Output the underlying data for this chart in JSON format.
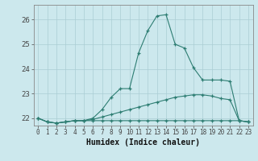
{
  "xlabel": "Humidex (Indice chaleur)",
  "bg_color": "#cce8ed",
  "line_color": "#2d7d72",
  "grid_color": "#aacdd4",
  "xlim": [
    -0.5,
    23.5
  ],
  "ylim": [
    21.7,
    26.6
  ],
  "yticks": [
    22,
    23,
    24,
    25,
    26
  ],
  "xticks": [
    0,
    1,
    2,
    3,
    4,
    5,
    6,
    7,
    8,
    9,
    10,
    11,
    12,
    13,
    14,
    15,
    16,
    17,
    18,
    19,
    20,
    21,
    22,
    23
  ],
  "line1_x": [
    0,
    1,
    2,
    3,
    4,
    5,
    6,
    7,
    8,
    9,
    10,
    11,
    12,
    13,
    14,
    15,
    16,
    17,
    18,
    19,
    20,
    21,
    22,
    23
  ],
  "line1_y": [
    22.0,
    21.85,
    21.8,
    21.85,
    21.9,
    21.9,
    22.0,
    22.35,
    22.85,
    23.2,
    23.2,
    24.65,
    25.55,
    26.15,
    26.2,
    25.0,
    24.85,
    24.05,
    23.55,
    23.55,
    23.55,
    23.5,
    21.9,
    21.85
  ],
  "line2_x": [
    0,
    1,
    2,
    3,
    4,
    5,
    6,
    7,
    8,
    9,
    10,
    11,
    12,
    13,
    14,
    15,
    16,
    17,
    18,
    19,
    20,
    21,
    22,
    23
  ],
  "line2_y": [
    22.0,
    21.85,
    21.8,
    21.85,
    21.9,
    21.9,
    21.95,
    22.05,
    22.15,
    22.25,
    22.35,
    22.45,
    22.55,
    22.65,
    22.75,
    22.85,
    22.9,
    22.95,
    22.95,
    22.9,
    22.8,
    22.75,
    21.9,
    21.85
  ],
  "line3_x": [
    0,
    1,
    2,
    3,
    4,
    5,
    6,
    7,
    8,
    9,
    10,
    11,
    12,
    13,
    14,
    15,
    16,
    17,
    18,
    19,
    20,
    21,
    22,
    23
  ],
  "line3_y": [
    22.0,
    21.85,
    21.8,
    21.85,
    21.9,
    21.9,
    21.9,
    21.9,
    21.9,
    21.9,
    21.9,
    21.9,
    21.9,
    21.9,
    21.9,
    21.9,
    21.9,
    21.9,
    21.9,
    21.9,
    21.9,
    21.9,
    21.9,
    21.85
  ]
}
